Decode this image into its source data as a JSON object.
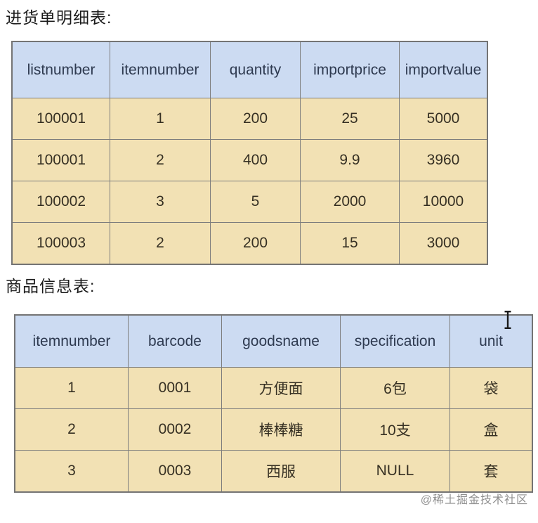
{
  "page": {
    "table1_title": "进货单明细表:",
    "table2_title": "商品信息表:",
    "watermark": "@稀土掘金技术社区",
    "colors": {
      "header_bg": "#ccdbf2",
      "cell_bg": "#f2e1b4",
      "border": "#7d7d7d",
      "header_text": "#2e3a50",
      "cell_text": "#363023",
      "watermark_text": "#8f8f8f"
    }
  },
  "tables": [
    {
      "name": "purchase-detail-table",
      "columns": [
        "listnumber",
        "itemnumber",
        "quantity",
        "importprice",
        "importvalue"
      ],
      "rows": [
        [
          "100001",
          "1",
          "200",
          "25",
          "5000"
        ],
        [
          "100001",
          "2",
          "400",
          "9.9",
          "3960"
        ],
        [
          "100002",
          "3",
          "5",
          "2000",
          "10000"
        ],
        [
          "100003",
          "2",
          "200",
          "15",
          "3000"
        ]
      ]
    },
    {
      "name": "goods-info-table",
      "columns": [
        "itemnumber",
        "barcode",
        "goodsname",
        "specification",
        "unit"
      ],
      "rows": [
        [
          "1",
          "0001",
          "方便面",
          "6包",
          "袋"
        ],
        [
          "2",
          "0002",
          "棒棒糖",
          "10支",
          "盒"
        ],
        [
          "3",
          "0003",
          "西服",
          "NULL",
          "套"
        ]
      ]
    }
  ],
  "cursor": {
    "type": "text-ibeam"
  }
}
